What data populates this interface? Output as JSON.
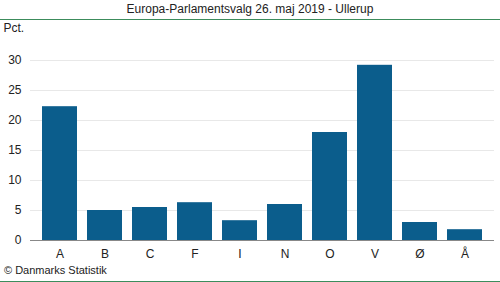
{
  "chart_data": {
    "type": "bar",
    "title": "Europa-Parlamentsvalg 26. maj 2019 - Ullerup",
    "caption": "© Danmarks Statistik",
    "y_label": "Pct.",
    "categories": [
      "A",
      "B",
      "C",
      "F",
      "I",
      "N",
      "O",
      "V",
      "Ø",
      "Å"
    ],
    "values": [
      22.3,
      5.0,
      5.5,
      6.3,
      3.3,
      6.0,
      18.0,
      29.2,
      3.0,
      1.8
    ],
    "color": "#0b5d8c",
    "ylim": [
      0,
      30
    ],
    "yticks": [
      0,
      5,
      10,
      15,
      20,
      25,
      30
    ],
    "grid": true
  }
}
